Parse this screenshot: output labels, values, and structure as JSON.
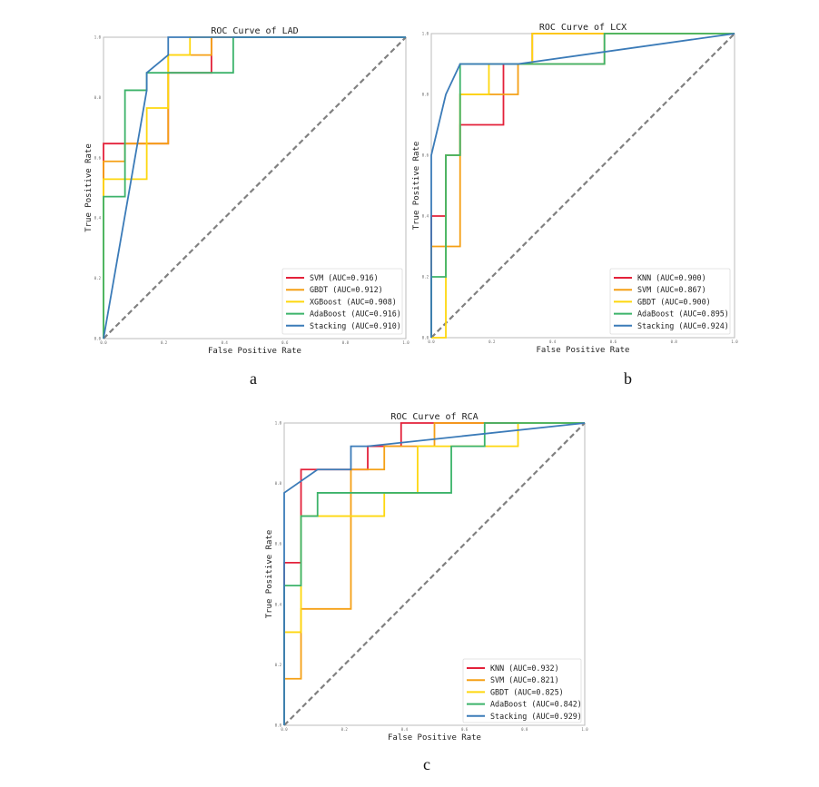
{
  "panels": [
    {
      "id": "a",
      "label": "a"
    },
    {
      "id": "b",
      "label": "b"
    },
    {
      "id": "c",
      "label": "c"
    }
  ],
  "colors": {
    "red": "#e3213a",
    "orange": "#f5a015",
    "yellow": "#fed70e",
    "green": "#3cb36a",
    "blue": "#3b7bb8",
    "diagonal": "#808080",
    "axes": "#bbbbbb"
  },
  "chart_data": [
    {
      "type": "line",
      "title": "ROC Curve of LAD",
      "xlabel": "False Positive Rate",
      "ylabel": "True Positive Rate",
      "xlim": [
        0,
        1
      ],
      "ylim": [
        0,
        1
      ],
      "xticks": [
        "0.0",
        "0.2",
        "0.4",
        "0.6",
        "0.8",
        "1.0"
      ],
      "yticks": [
        "0.0",
        "0.2",
        "0.4",
        "0.6",
        "0.8",
        "1.0"
      ],
      "grid": false,
      "legend_position": "bottom-right",
      "diagonal": true,
      "series": [
        {
          "name": "SVM (AUC=0.916)",
          "color": "red",
          "points": [
            [
              0,
              0
            ],
            [
              0,
              0.647
            ],
            [
              0.214,
              0.647
            ],
            [
              0.214,
              0.882
            ],
            [
              0.357,
              0.882
            ],
            [
              0.357,
              1
            ],
            [
              1,
              1
            ]
          ]
        },
        {
          "name": "GBDT (AUC=0.912)",
          "color": "orange",
          "points": [
            [
              0,
              0
            ],
            [
              0,
              0.588
            ],
            [
              0.071,
              0.588
            ],
            [
              0.071,
              0.647
            ],
            [
              0.214,
              0.647
            ],
            [
              0.214,
              0.941
            ],
            [
              0.357,
              0.941
            ],
            [
              0.357,
              1
            ],
            [
              1,
              1
            ]
          ]
        },
        {
          "name": "XGBoost (AUC=0.908)",
          "color": "yellow",
          "points": [
            [
              0,
              0
            ],
            [
              0,
              0.529
            ],
            [
              0.143,
              0.529
            ],
            [
              0.143,
              0.765
            ],
            [
              0.214,
              0.765
            ],
            [
              0.214,
              0.941
            ],
            [
              0.286,
              0.941
            ],
            [
              0.286,
              1
            ],
            [
              1,
              1
            ]
          ]
        },
        {
          "name": "AdaBoost (AUC=0.916)",
          "color": "green",
          "points": [
            [
              0,
              0
            ],
            [
              0,
              0.471
            ],
            [
              0.071,
              0.471
            ],
            [
              0.071,
              0.824
            ],
            [
              0.143,
              0.824
            ],
            [
              0.143,
              0.882
            ],
            [
              0.429,
              0.882
            ],
            [
              0.429,
              1
            ],
            [
              1,
              1
            ]
          ]
        },
        {
          "name": "Stacking (AUC=0.910)",
          "color": "blue",
          "points": [
            [
              0,
              0
            ],
            [
              0.143,
              0.824
            ],
            [
              0.143,
              0.882
            ],
            [
              0.214,
              0.941
            ],
            [
              0.214,
              1
            ],
            [
              1,
              1
            ]
          ]
        }
      ]
    },
    {
      "type": "line",
      "title": "ROC Curve of LCX",
      "xlabel": "False Positive Rate",
      "ylabel": "True Positive Rate",
      "xlim": [
        0,
        1
      ],
      "ylim": [
        0,
        1
      ],
      "xticks": [
        "0.0",
        "0.2",
        "0.4",
        "0.6",
        "0.8",
        "1.0"
      ],
      "yticks": [
        "0.0",
        "0.2",
        "0.4",
        "0.6",
        "0.8",
        "1.0"
      ],
      "grid": false,
      "legend_position": "bottom-right",
      "diagonal": true,
      "series": [
        {
          "name": "KNN (AUC=0.900)",
          "color": "red",
          "points": [
            [
              0,
              0
            ],
            [
              0,
              0.4
            ],
            [
              0.048,
              0.4
            ],
            [
              0.048,
              0.6
            ],
            [
              0.095,
              0.6
            ],
            [
              0.095,
              0.7
            ],
            [
              0.238,
              0.7
            ],
            [
              0.238,
              0.9
            ],
            [
              0.333,
              0.9
            ],
            [
              0.333,
              1
            ],
            [
              1,
              1
            ]
          ]
        },
        {
          "name": "SVM (AUC=0.867)",
          "color": "orange",
          "points": [
            [
              0,
              0
            ],
            [
              0,
              0.3
            ],
            [
              0.095,
              0.3
            ],
            [
              0.095,
              0.8
            ],
            [
              0.286,
              0.8
            ],
            [
              0.286,
              0.9
            ],
            [
              0.571,
              0.9
            ],
            [
              0.571,
              1
            ],
            [
              1,
              1
            ]
          ]
        },
        {
          "name": "GBDT (AUC=0.900)",
          "color": "yellow",
          "points": [
            [
              0,
              0
            ],
            [
              0.048,
              0
            ],
            [
              0.048,
              0.6
            ],
            [
              0.095,
              0.6
            ],
            [
              0.095,
              0.8
            ],
            [
              0.19,
              0.8
            ],
            [
              0.19,
              0.9
            ],
            [
              0.333,
              0.9
            ],
            [
              0.333,
              1
            ],
            [
              1,
              1
            ]
          ]
        },
        {
          "name": "AdaBoost (AUC=0.895)",
          "color": "green",
          "points": [
            [
              0,
              0
            ],
            [
              0,
              0.2
            ],
            [
              0.048,
              0.2
            ],
            [
              0.048,
              0.6
            ],
            [
              0.095,
              0.6
            ],
            [
              0.095,
              0.9
            ],
            [
              0.571,
              0.9
            ],
            [
              0.571,
              1
            ],
            [
              1,
              1
            ]
          ]
        },
        {
          "name": "Stacking (AUC=0.924)",
          "color": "blue",
          "points": [
            [
              0,
              0
            ],
            [
              0,
              0.6
            ],
            [
              0.048,
              0.8
            ],
            [
              0.095,
              0.9
            ],
            [
              0.286,
              0.9
            ],
            [
              1,
              1
            ]
          ]
        }
      ]
    },
    {
      "type": "line",
      "title": "ROC Curve of RCA",
      "xlabel": "False Positive Rate",
      "ylabel": "True Positive Rate",
      "xlim": [
        0,
        1
      ],
      "ylim": [
        0,
        1
      ],
      "xticks": [
        "0.0",
        "0.2",
        "0.4",
        "0.6",
        "0.8",
        "1.0"
      ],
      "yticks": [
        "0.0",
        "0.2",
        "0.4",
        "0.6",
        "0.8",
        "1.0"
      ],
      "grid": false,
      "legend_position": "bottom-right",
      "diagonal": true,
      "series": [
        {
          "name": "KNN (AUC=0.932)",
          "color": "red",
          "points": [
            [
              0,
              0
            ],
            [
              0,
              0.538
            ],
            [
              0.056,
              0.538
            ],
            [
              0.056,
              0.846
            ],
            [
              0.278,
              0.846
            ],
            [
              0.278,
              0.923
            ],
            [
              0.389,
              0.923
            ],
            [
              0.389,
              1
            ],
            [
              1,
              1
            ]
          ]
        },
        {
          "name": "SVM (AUC=0.821)",
          "color": "orange",
          "points": [
            [
              0,
              0
            ],
            [
              0,
              0.154
            ],
            [
              0.056,
              0.154
            ],
            [
              0.056,
              0.385
            ],
            [
              0.222,
              0.385
            ],
            [
              0.222,
              0.846
            ],
            [
              0.333,
              0.846
            ],
            [
              0.333,
              0.923
            ],
            [
              0.5,
              0.923
            ],
            [
              0.5,
              1
            ],
            [
              1,
              1
            ]
          ]
        },
        {
          "name": "GBDT (AUC=0.825)",
          "color": "yellow",
          "points": [
            [
              0,
              0
            ],
            [
              0,
              0.308
            ],
            [
              0.056,
              0.308
            ],
            [
              0.056,
              0.692
            ],
            [
              0.333,
              0.692
            ],
            [
              0.333,
              0.769
            ],
            [
              0.444,
              0.769
            ],
            [
              0.444,
              0.923
            ],
            [
              0.778,
              0.923
            ],
            [
              0.778,
              1
            ],
            [
              1,
              1
            ]
          ]
        },
        {
          "name": "AdaBoost (AUC=0.842)",
          "color": "green",
          "points": [
            [
              0,
              0
            ],
            [
              0,
              0.462
            ],
            [
              0.056,
              0.462
            ],
            [
              0.056,
              0.692
            ],
            [
              0.111,
              0.692
            ],
            [
              0.111,
              0.769
            ],
            [
              0.556,
              0.769
            ],
            [
              0.556,
              0.923
            ],
            [
              0.667,
              0.923
            ],
            [
              0.667,
              1
            ],
            [
              1,
              1
            ]
          ]
        },
        {
          "name": "Stacking (AUC=0.929)",
          "color": "blue",
          "points": [
            [
              0,
              0
            ],
            [
              0,
              0.769
            ],
            [
              0.111,
              0.846
            ],
            [
              0.222,
              0.846
            ],
            [
              0.222,
              0.923
            ],
            [
              0.278,
              0.923
            ],
            [
              1,
              1
            ]
          ]
        }
      ]
    }
  ]
}
